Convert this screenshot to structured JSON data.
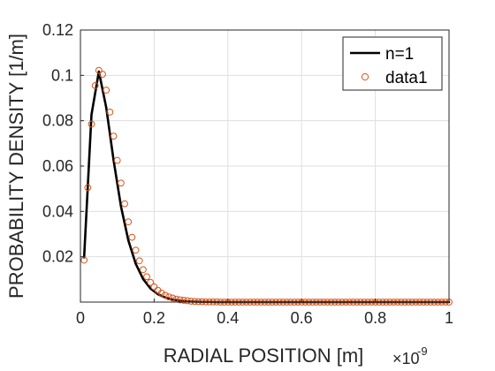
{
  "chart_data": {
    "type": "line",
    "title": "",
    "xlabel": "RADIAL POSITION [m]",
    "ylabel": "PROBABILITY DENSITY [1/m]",
    "x_exponent_base": "×10",
    "x_exponent_power": "-9",
    "xlim": [
      0,
      1
    ],
    "ylim": [
      0,
      0.12
    ],
    "x_ticks": [
      0,
      0.2,
      0.4,
      0.6,
      0.8,
      1
    ],
    "x_tick_labels": [
      "0",
      "0.2",
      "0.4",
      "0.6",
      "0.8",
      "1"
    ],
    "y_ticks": [
      0.02,
      0.04,
      0.06,
      0.08,
      0.1,
      0.12
    ],
    "y_tick_labels": [
      "0.02",
      "0.04",
      "0.06",
      "0.08",
      "0.1",
      "0.12"
    ],
    "grid": true,
    "legend_position": "top-right",
    "series": [
      {
        "name": "n=1",
        "style": "line",
        "color": "#000000",
        "x": [
          0.01,
          0.03,
          0.05,
          0.07,
          0.09,
          0.11,
          0.13,
          0.15,
          0.17,
          0.19,
          0.21,
          0.23,
          0.25,
          0.27,
          0.29,
          0.31,
          0.33,
          0.35,
          0.37,
          0.4,
          0.45,
          0.5,
          0.6,
          0.7,
          0.8,
          0.9,
          1.0
        ],
        "y": [
          0.0197,
          0.0827,
          0.1017,
          0.0858,
          0.0625,
          0.0422,
          0.0272,
          0.0169,
          0.0102,
          0.006,
          0.0035,
          0.002,
          0.0011,
          0.0006,
          0.0003,
          0.0002,
          0.0001,
          0.0001,
          0.0,
          0.0,
          0.0,
          0.0,
          0.0,
          0.0,
          0.0,
          0.0,
          0.0
        ]
      },
      {
        "name": "data1",
        "style": "markers",
        "marker": "circle",
        "color": "#d95319",
        "x": [
          0.01,
          0.02,
          0.03,
          0.04,
          0.05,
          0.06,
          0.07,
          0.08,
          0.09,
          0.1,
          0.11,
          0.12,
          0.13,
          0.14,
          0.15,
          0.16,
          0.17,
          0.18,
          0.19,
          0.2,
          0.21,
          0.22,
          0.23,
          0.24,
          0.25,
          0.26,
          0.27,
          0.28,
          0.29,
          0.3,
          0.31,
          0.32,
          0.33,
          0.34,
          0.35,
          0.36,
          0.37,
          0.38,
          0.39,
          0.4,
          0.41,
          0.42,
          0.43,
          0.44,
          0.45,
          0.46,
          0.47,
          0.48,
          0.49,
          0.5,
          0.51,
          0.52,
          0.53,
          0.54,
          0.55,
          0.56,
          0.57,
          0.58,
          0.59,
          0.6,
          0.61,
          0.62,
          0.63,
          0.64,
          0.65,
          0.66,
          0.67,
          0.68,
          0.69,
          0.7,
          0.71,
          0.72,
          0.73,
          0.74,
          0.75,
          0.76,
          0.77,
          0.78,
          0.79,
          0.8,
          0.81,
          0.82,
          0.83,
          0.84,
          0.85,
          0.86,
          0.87,
          0.88,
          0.89,
          0.9,
          0.91,
          0.92,
          0.93,
          0.94,
          0.95,
          0.96,
          0.97,
          0.98,
          0.99,
          1.0
        ],
        "y": [
          0.0185,
          0.0505,
          0.0785,
          0.0955,
          0.1022,
          0.1005,
          0.0935,
          0.0838,
          0.0732,
          0.0625,
          0.0525,
          0.0434,
          0.0354,
          0.0286,
          0.0229,
          0.0182,
          0.0143,
          0.0112,
          0.0087,
          0.0067,
          0.0052,
          0.004,
          0.003,
          0.0023,
          0.0018,
          0.0013,
          0.001,
          0.0008,
          0.0006,
          0.0004,
          0.0003,
          0.0002,
          0.0002,
          0.0001,
          0.0001,
          0.0001,
          0.0001,
          0.0,
          0.0,
          0.0,
          0.0,
          0.0,
          0.0,
          0.0,
          0.0,
          0.0,
          0.0,
          0.0,
          0.0,
          0.0,
          0.0,
          0.0,
          0.0,
          0.0,
          0.0,
          0.0,
          0.0,
          0.0,
          0.0,
          0.0,
          0.0,
          0.0,
          0.0,
          0.0,
          0.0,
          0.0,
          0.0,
          0.0,
          0.0,
          0.0,
          0.0,
          0.0,
          0.0,
          0.0,
          0.0,
          0.0,
          0.0,
          0.0,
          0.0,
          0.0,
          0.0,
          0.0,
          0.0,
          0.0,
          0.0,
          0.0,
          0.0,
          0.0,
          0.0,
          0.0,
          0.0,
          0.0,
          0.0,
          0.0,
          0.0,
          0.0,
          0.0,
          0.0,
          0.0,
          0.0
        ]
      }
    ]
  }
}
